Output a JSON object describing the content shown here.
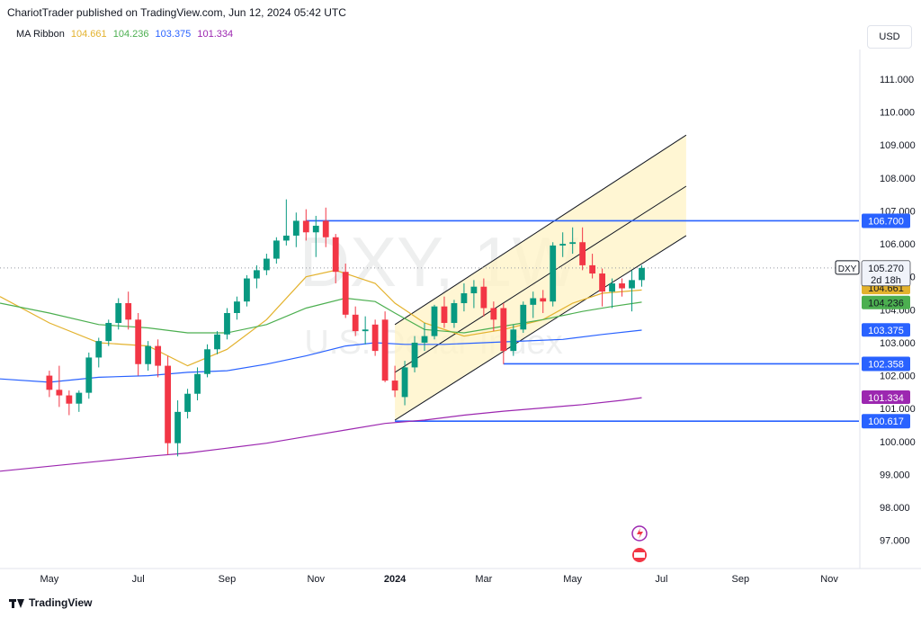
{
  "header": {
    "published": "ChariotTrader published on TradingView.com, Jun 12, 2024 05:42 UTC"
  },
  "ma_legend": {
    "label": "MA Ribbon",
    "values": [
      "104.661",
      "104.236",
      "103.375",
      "101.334"
    ],
    "colors": [
      "#e3b22d",
      "#4caf50",
      "#2962ff",
      "#9c27b0"
    ]
  },
  "currency_button": "USD",
  "footer": {
    "brand": "TradingView"
  },
  "watermark": {
    "symbol": "DXY, 1W",
    "name": "U.S. Dollar Index"
  },
  "colors": {
    "up": "#089981",
    "down": "#f23645",
    "level": "#2962ff",
    "channel_fill": "#fff3c4",
    "channel_line": "#131722",
    "price_label_bg": "#f0f3fa"
  },
  "chart_data": {
    "type": "candlestick",
    "symbol": "DXY",
    "timeframe": "1W",
    "y_axis_ticks": [
      "111.000",
      "110.000",
      "109.000",
      "108.000",
      "107.000",
      "106.000",
      "105.000",
      "104.000",
      "103.000",
      "102.000",
      "101.000",
      "100.000",
      "99.000",
      "98.000",
      "97.000"
    ],
    "ylim": [
      96.2,
      111.9
    ],
    "x_axis_ticks": [
      "May",
      "Jul",
      "Sep",
      "Nov",
      "2024",
      "Mar",
      "May",
      "Jul",
      "Sep",
      "Nov"
    ],
    "x_tick_week_index": [
      0,
      9,
      18,
      27,
      35,
      44,
      53,
      62,
      70,
      79
    ],
    "xlim": [
      -5,
      82
    ],
    "candles": [
      [
        102.0,
        102.15,
        101.35,
        101.57
      ],
      [
        101.57,
        102.3,
        101.05,
        101.4
      ],
      [
        101.4,
        101.55,
        100.8,
        101.15
      ],
      [
        101.15,
        101.55,
        100.9,
        101.48
      ],
      [
        101.48,
        102.7,
        101.3,
        102.55
      ],
      [
        102.55,
        103.15,
        102.25,
        103.05
      ],
      [
        103.05,
        103.7,
        102.9,
        103.6
      ],
      [
        103.6,
        104.35,
        103.4,
        104.2
      ],
      [
        104.2,
        104.55,
        103.4,
        103.7
      ],
      [
        103.7,
        103.9,
        102.0,
        102.35
      ],
      [
        102.35,
        103.05,
        102.15,
        102.9
      ],
      [
        102.9,
        103.1,
        101.95,
        102.3
      ],
      [
        102.3,
        102.6,
        99.6,
        99.95
      ],
      [
        99.95,
        101.25,
        99.55,
        100.9
      ],
      [
        100.9,
        101.6,
        100.7,
        101.45
      ],
      [
        101.45,
        102.25,
        101.25,
        102.05
      ],
      [
        102.05,
        102.95,
        101.95,
        102.8
      ],
      [
        102.8,
        103.35,
        102.65,
        103.25
      ],
      [
        103.25,
        104.05,
        103.1,
        103.9
      ],
      [
        103.9,
        104.4,
        103.7,
        104.25
      ],
      [
        104.25,
        105.05,
        104.1,
        104.95
      ],
      [
        104.95,
        105.35,
        104.65,
        105.2
      ],
      [
        105.2,
        105.7,
        105.05,
        105.55
      ],
      [
        105.55,
        106.2,
        105.4,
        106.1
      ],
      [
        106.1,
        107.35,
        105.95,
        106.25
      ],
      [
        106.25,
        106.95,
        105.9,
        106.7
      ],
      [
        106.7,
        107.05,
        106.1,
        106.35
      ],
      [
        106.35,
        106.85,
        105.6,
        106.55
      ],
      [
        106.7,
        107.1,
        105.9,
        106.2
      ],
      [
        106.2,
        106.3,
        104.8,
        105.15
      ],
      [
        105.15,
        105.4,
        103.75,
        103.85
      ],
      [
        103.85,
        104.1,
        103.2,
        103.35
      ],
      [
        103.35,
        103.8,
        102.95,
        103.4
      ],
      [
        103.55,
        103.7,
        102.6,
        102.75
      ],
      [
        103.7,
        103.95,
        101.8,
        101.85
      ],
      [
        101.85,
        102.3,
        101.35,
        101.55
      ],
      [
        101.35,
        102.45,
        101.1,
        102.25
      ],
      [
        102.25,
        103.2,
        102.1,
        103.0
      ],
      [
        103.0,
        103.6,
        102.75,
        103.2
      ],
      [
        103.2,
        104.15,
        103.1,
        104.1
      ],
      [
        104.1,
        104.4,
        103.45,
        103.6
      ],
      [
        103.6,
        104.3,
        103.45,
        104.2
      ],
      [
        104.2,
        104.8,
        103.95,
        104.5
      ],
      [
        104.5,
        104.9,
        104.05,
        104.7
      ],
      [
        104.7,
        104.95,
        103.8,
        104.05
      ],
      [
        104.05,
        104.25,
        103.35,
        103.7
      ],
      [
        104.05,
        104.2,
        102.35,
        102.75
      ],
      [
        102.75,
        103.55,
        102.6,
        103.4
      ],
      [
        103.4,
        104.25,
        103.3,
        104.15
      ],
      [
        104.15,
        104.55,
        103.75,
        104.35
      ],
      [
        104.35,
        104.6,
        103.9,
        104.25
      ],
      [
        104.25,
        106.05,
        104.1,
        105.95
      ],
      [
        105.95,
        106.35,
        105.6,
        106.0
      ],
      [
        106.0,
        106.5,
        105.7,
        106.05
      ],
      [
        106.05,
        106.5,
        105.2,
        105.35
      ],
      [
        105.35,
        105.7,
        104.95,
        105.1
      ],
      [
        105.1,
        105.25,
        104.1,
        104.55
      ],
      [
        104.55,
        104.95,
        104.05,
        104.8
      ],
      [
        104.8,
        104.95,
        104.4,
        104.65
      ],
      [
        104.65,
        105.2,
        103.95,
        104.9
      ],
      [
        104.9,
        105.35,
        104.7,
        105.27
      ]
    ],
    "ma_ribbon": {
      "periods_label": "MA Ribbon",
      "series": [
        {
          "name": "104.661",
          "color": "#e3b22d",
          "points": [
            [
              -5,
              104.4
            ],
            [
              0,
              103.6
            ],
            [
              5,
              103.0
            ],
            [
              10,
              102.9
            ],
            [
              14,
              102.3
            ],
            [
              18,
              102.8
            ],
            [
              22,
              103.7
            ],
            [
              26,
              105.0
            ],
            [
              29,
              105.2
            ],
            [
              33,
              104.8
            ],
            [
              35,
              104.2
            ],
            [
              38,
              103.6
            ],
            [
              42,
              103.2
            ],
            [
              46,
              103.4
            ],
            [
              50,
              103.7
            ],
            [
              53,
              104.2
            ],
            [
              56,
              104.5
            ],
            [
              60,
              104.6
            ]
          ]
        },
        {
          "name": "104.236",
          "color": "#4caf50",
          "points": [
            [
              -5,
              104.2
            ],
            [
              0,
              103.9
            ],
            [
              5,
              103.55
            ],
            [
              10,
              103.45
            ],
            [
              14,
              103.3
            ],
            [
              18,
              103.3
            ],
            [
              22,
              103.55
            ],
            [
              26,
              104.05
            ],
            [
              30,
              104.35
            ],
            [
              33,
              104.25
            ],
            [
              35,
              103.9
            ],
            [
              38,
              103.4
            ],
            [
              42,
              103.3
            ],
            [
              46,
              103.5
            ],
            [
              50,
              103.7
            ],
            [
              54,
              103.95
            ],
            [
              57,
              104.1
            ],
            [
              60,
              104.23
            ]
          ]
        },
        {
          "name": "103.375",
          "color": "#2962ff",
          "points": [
            [
              -5,
              101.9
            ],
            [
              0,
              101.8
            ],
            [
              5,
              101.95
            ],
            [
              10,
              102.0
            ],
            [
              14,
              102.1
            ],
            [
              18,
              102.15
            ],
            [
              22,
              102.35
            ],
            [
              26,
              102.6
            ],
            [
              30,
              102.9
            ],
            [
              33,
              103.0
            ],
            [
              36,
              102.95
            ],
            [
              40,
              102.95
            ],
            [
              44,
              103.0
            ],
            [
              48,
              103.05
            ],
            [
              52,
              103.1
            ],
            [
              56,
              103.25
            ],
            [
              60,
              103.38
            ]
          ]
        },
        {
          "name": "101.334",
          "color": "#9c27b0",
          "points": [
            [
              -5,
              99.1
            ],
            [
              0,
              99.25
            ],
            [
              5,
              99.4
            ],
            [
              10,
              99.55
            ],
            [
              14,
              99.65
            ],
            [
              18,
              99.8
            ],
            [
              22,
              99.95
            ],
            [
              26,
              100.15
            ],
            [
              30,
              100.35
            ],
            [
              34,
              100.55
            ],
            [
              38,
              100.65
            ],
            [
              42,
              100.8
            ],
            [
              46,
              100.92
            ],
            [
              50,
              101.02
            ],
            [
              54,
              101.12
            ],
            [
              58,
              101.25
            ],
            [
              60,
              101.33
            ]
          ]
        }
      ]
    },
    "horizontal_levels": [
      {
        "price": 106.7,
        "label": "106.700",
        "x_start": 26
      },
      {
        "price": 102.358,
        "label": "102.358",
        "x_start": 46
      },
      {
        "price": 100.617,
        "label": "100.617",
        "x_start": 35
      }
    ],
    "channel": {
      "x_start": 35,
      "x_end": 64.5,
      "upper": [
        103.55,
        109.3
      ],
      "middle": [
        102.1,
        107.75
      ],
      "lower": [
        100.65,
        106.25
      ]
    },
    "current_price": {
      "symbol": "DXY",
      "price": "105.270",
      "countdown": "2d 18h",
      "value": 105.27
    },
    "price_labels": [
      {
        "value": 104.661,
        "text": "104.661",
        "bg": "#e3b22d",
        "fg": "#131722"
      },
      {
        "value": 104.236,
        "text": "104.236",
        "bg": "#4caf50",
        "fg": "#131722"
      },
      {
        "value": 103.375,
        "text": "103.375",
        "bg": "#2962ff",
        "fg": "#ffffff"
      },
      {
        "value": 101.334,
        "text": "101.334",
        "bg": "#9c27b0",
        "fg": "#ffffff"
      }
    ]
  }
}
